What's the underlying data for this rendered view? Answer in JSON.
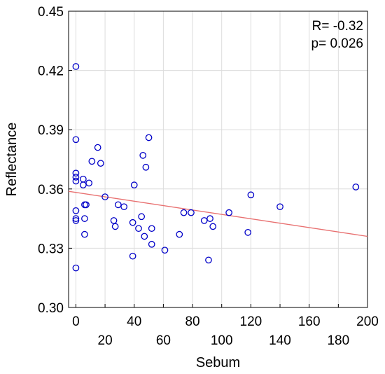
{
  "chart_data": {
    "type": "scatter",
    "title": "",
    "xlabel": "Sebum",
    "ylabel": "Reflectance",
    "xlim": [
      -5,
      200
    ],
    "ylim": [
      0.3,
      0.45
    ],
    "x_ticks": [
      0,
      20,
      40,
      60,
      80,
      100,
      120,
      140,
      160,
      180,
      200
    ],
    "x_tick_labels": [
      "0",
      "20",
      "40",
      "60",
      "80",
      "100",
      "120",
      "140",
      "160",
      "180",
      "200"
    ],
    "y_ticks": [
      0.3,
      0.33,
      0.36,
      0.39,
      0.42,
      0.45
    ],
    "y_tick_labels": [
      "0.30",
      "0.33",
      "0.36",
      "0.39",
      "0.42",
      "0.45"
    ],
    "grid": true,
    "annotations": [
      "R= -0.32",
      "p= 0.026"
    ],
    "marker_color": "#0000c8",
    "line_color": "#e87070",
    "regression_line": {
      "x": [
        -5,
        200
      ],
      "y": [
        0.3588,
        0.336
      ]
    },
    "points": [
      {
        "x": 0,
        "y": 0.422
      },
      {
        "x": 0,
        "y": 0.385
      },
      {
        "x": 0,
        "y": 0.368
      },
      {
        "x": 0,
        "y": 0.366
      },
      {
        "x": 0,
        "y": 0.364
      },
      {
        "x": 0,
        "y": 0.349
      },
      {
        "x": 0,
        "y": 0.345
      },
      {
        "x": 0,
        "y": 0.344
      },
      {
        "x": 0,
        "y": 0.32
      },
      {
        "x": 5,
        "y": 0.365
      },
      {
        "x": 5,
        "y": 0.362
      },
      {
        "x": 6,
        "y": 0.352
      },
      {
        "x": 6,
        "y": 0.345
      },
      {
        "x": 6,
        "y": 0.337
      },
      {
        "x": 7,
        "y": 0.352
      },
      {
        "x": 9,
        "y": 0.363
      },
      {
        "x": 11,
        "y": 0.374
      },
      {
        "x": 15,
        "y": 0.381
      },
      {
        "x": 17,
        "y": 0.373
      },
      {
        "x": 20,
        "y": 0.356
      },
      {
        "x": 26,
        "y": 0.344
      },
      {
        "x": 27,
        "y": 0.341
      },
      {
        "x": 29,
        "y": 0.352
      },
      {
        "x": 33,
        "y": 0.351
      },
      {
        "x": 39,
        "y": 0.326
      },
      {
        "x": 39,
        "y": 0.343
      },
      {
        "x": 40,
        "y": 0.362
      },
      {
        "x": 43,
        "y": 0.34
      },
      {
        "x": 45,
        "y": 0.346
      },
      {
        "x": 46,
        "y": 0.377
      },
      {
        "x": 47,
        "y": 0.336
      },
      {
        "x": 48,
        "y": 0.371
      },
      {
        "x": 50,
        "y": 0.386
      },
      {
        "x": 52,
        "y": 0.34
      },
      {
        "x": 52,
        "y": 0.332
      },
      {
        "x": 61,
        "y": 0.329
      },
      {
        "x": 71,
        "y": 0.337
      },
      {
        "x": 74,
        "y": 0.348
      },
      {
        "x": 79,
        "y": 0.348
      },
      {
        "x": 88,
        "y": 0.344
      },
      {
        "x": 91,
        "y": 0.324
      },
      {
        "x": 92,
        "y": 0.345
      },
      {
        "x": 94,
        "y": 0.341
      },
      {
        "x": 105,
        "y": 0.348
      },
      {
        "x": 118,
        "y": 0.338
      },
      {
        "x": 120,
        "y": 0.357
      },
      {
        "x": 140,
        "y": 0.351
      },
      {
        "x": 192,
        "y": 0.361
      }
    ]
  }
}
